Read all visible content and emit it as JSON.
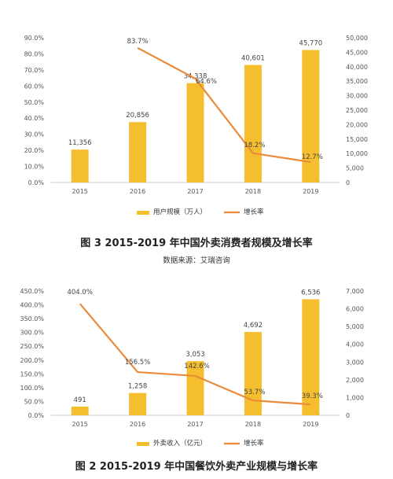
{
  "chart_data": [
    {
      "type": "bar",
      "categories": [
        "2015",
        "2016",
        "2017",
        "2018",
        "2019"
      ],
      "series": [
        {
          "name": "用户规模（万人）",
          "type": "bar",
          "axis": "right",
          "values": [
            11356,
            20856,
            34338,
            40601,
            45770
          ],
          "labels": [
            "11,356",
            "20,856",
            "34,338",
            "40,601",
            "45,770"
          ]
        },
        {
          "name": "增长率",
          "type": "line",
          "axis": "left",
          "values": [
            null,
            83.7,
            64.6,
            18.2,
            12.7
          ],
          "labels": [
            "",
            "83.7%",
            "64.6%",
            "18.2%",
            "12.7%"
          ]
        }
      ],
      "y_left_ticks": [
        "0.0%",
        "10.0%",
        "20.0%",
        "30.0%",
        "40.0%",
        "50.0%",
        "60.0%",
        "70.0%",
        "80.0%",
        "90.0%"
      ],
      "y_right_ticks": [
        "0",
        "5,000",
        "10,000",
        "15,000",
        "20,000",
        "25,000",
        "30,000",
        "35,000",
        "40,000",
        "45,000",
        "50,000"
      ],
      "ylim_left": [
        0,
        90
      ],
      "ylim_right": [
        0,
        50000
      ],
      "grid": false,
      "legend": "bottom",
      "caption": "图 3   2015-2019 年中国外卖消费者规模及增长率",
      "source": "数据来源：艾瑞咨询"
    },
    {
      "type": "bar",
      "categories": [
        "2015",
        "2016",
        "2017",
        "2018",
        "2019"
      ],
      "series": [
        {
          "name": "外卖收入（亿元）",
          "type": "bar",
          "axis": "right",
          "values": [
            491,
            1258,
            3053,
            4692,
            6536
          ],
          "labels": [
            "491",
            "1,258",
            "3,053",
            "4,692",
            "6,536"
          ]
        },
        {
          "name": "增长率",
          "type": "line",
          "axis": "left",
          "values": [
            404.0,
            156.5,
            142.6,
            53.7,
            39.3
          ],
          "labels": [
            "404.0%",
            "156.5%",
            "142.6%",
            "53.7%",
            "39.3%"
          ]
        }
      ],
      "y_left_ticks": [
        "0.0%",
        "50.0%",
        "100.0%",
        "150.0%",
        "200.0%",
        "250.0%",
        "300.0%",
        "350.0%",
        "400.0%",
        "450.0%"
      ],
      "y_right_ticks": [
        "0",
        "1,000",
        "2,000",
        "3,000",
        "4,000",
        "5,000",
        "6,000",
        "7,000"
      ],
      "ylim_left": [
        0,
        450
      ],
      "ylim_right": [
        0,
        7000
      ],
      "grid": false,
      "legend": "bottom",
      "caption": "图 2   2015-2019 年中国餐饮外卖产业规模与增长率"
    }
  ],
  "colors": {
    "bar": "#F5BE2E",
    "line": "#EB8B3A",
    "axis_text": "#555555"
  }
}
